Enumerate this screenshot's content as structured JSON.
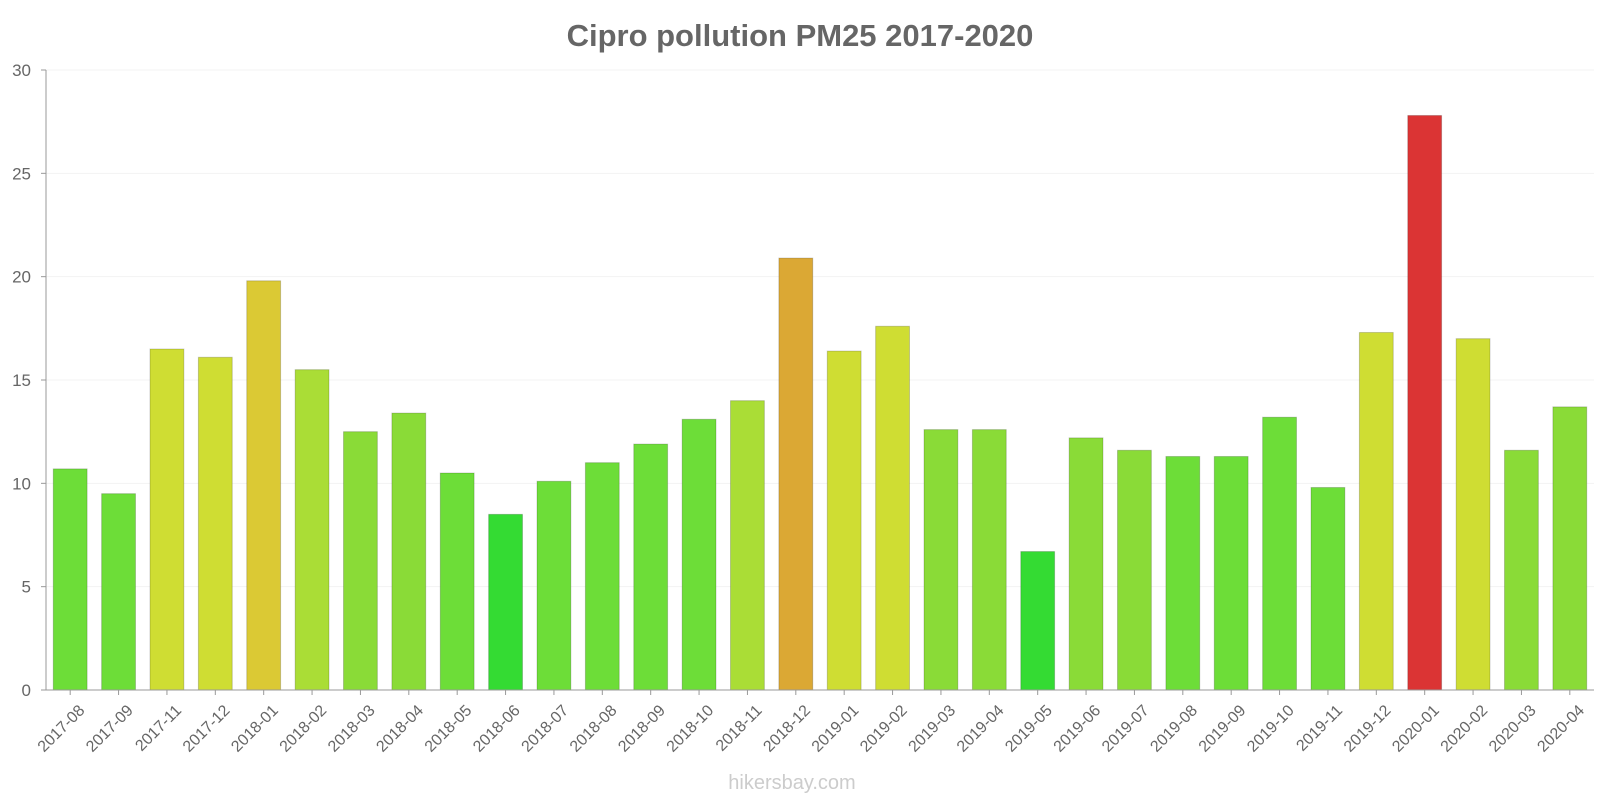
{
  "chart_data": {
    "type": "bar",
    "title": "Cipro pollution PM25 2017-2020",
    "xlabel": "",
    "ylabel": "",
    "ylim": [
      0,
      30
    ],
    "yticks": [
      "0",
      "5",
      "10",
      "15",
      "20",
      "25",
      "30"
    ],
    "categories": [
      "2017-08",
      "2017-09",
      "2017-11",
      "2017-12",
      "2018-01",
      "2018-02",
      "2018-03",
      "2018-04",
      "2018-05",
      "2018-06",
      "2018-07",
      "2018-08",
      "2018-09",
      "2018-10",
      "2018-11",
      "2018-12",
      "2019-01",
      "2019-02",
      "2019-03",
      "2019-04",
      "2019-05",
      "2019-06",
      "2019-07",
      "2019-08",
      "2019-09",
      "2019-10",
      "2019-11",
      "2019-12",
      "2020-01",
      "2020-02",
      "2020-03",
      "2020-04"
    ],
    "values": [
      10.7,
      9.5,
      16.5,
      16.1,
      19.8,
      15.5,
      12.5,
      13.4,
      10.5,
      8.5,
      10.1,
      11.0,
      11.9,
      13.1,
      14.0,
      20.9,
      16.4,
      17.6,
      12.6,
      12.6,
      6.7,
      12.2,
      11.6,
      11.3,
      11.3,
      13.2,
      9.8,
      17.3,
      27.8,
      17.0,
      11.6,
      13.7
    ],
    "colors": [
      "#6ddd38",
      "#6ddd38",
      "#cfdd33",
      "#cfdd33",
      "#dbc934",
      "#aadd36",
      "#8adb37",
      "#8adb37",
      "#6ddd38",
      "#34db33",
      "#6ddd38",
      "#6ddd38",
      "#6ddd38",
      "#6ddd38",
      "#aadd36",
      "#dba834",
      "#cfdd33",
      "#cfdd33",
      "#8adb37",
      "#8adb37",
      "#34db33",
      "#8adb37",
      "#8adb37",
      "#6ddd38",
      "#6ddd38",
      "#6ddd38",
      "#6ddd38",
      "#cfdd33",
      "#db3434",
      "#cfdd33",
      "#8adb37",
      "#8adb37"
    ]
  },
  "footer": {
    "watermark": "hikersbay.com"
  }
}
